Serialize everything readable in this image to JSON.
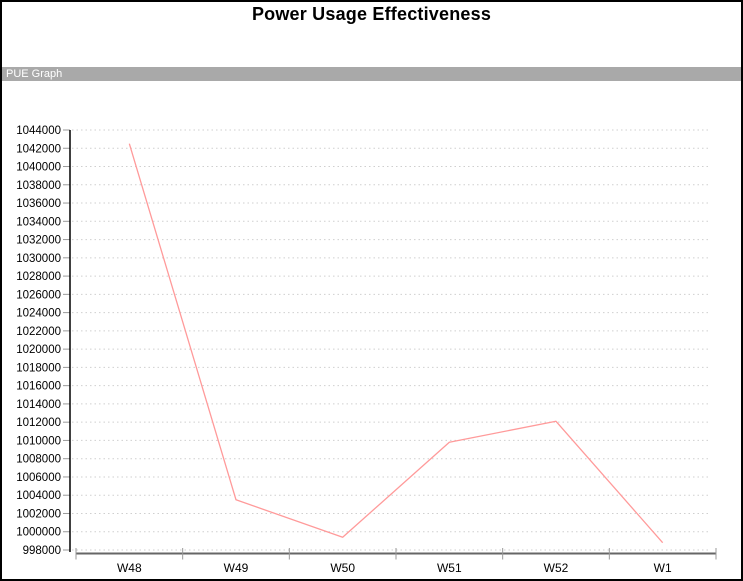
{
  "title": "Power Usage Effectiveness",
  "section_label": "PUE Graph",
  "colors": {
    "line": "#ff9a9a",
    "grid": "#cfcfcf",
    "y_axis": "#000000",
    "x_axis": "#666666",
    "tick": "#999999",
    "label_text": "#000000",
    "section_bar_bg": "#a9a9a9",
    "section_bar_text": "#ffffff",
    "title_text": "#000000"
  },
  "chart_data": {
    "type": "line",
    "title": "Power Usage Effectiveness",
    "subtitle": "PUE Graph",
    "categories": [
      "W48",
      "W49",
      "W50",
      "W51",
      "W52",
      "W1"
    ],
    "values": [
      1042500,
      1003500,
      999400,
      1009800,
      1012100,
      998800
    ],
    "xlabel": "",
    "ylabel": "",
    "ylim": [
      998000,
      1044000
    ],
    "ytick_step": 2000,
    "yticks": [
      998000,
      1000000,
      1002000,
      1004000,
      1006000,
      1008000,
      1010000,
      1012000,
      1014000,
      1016000,
      1018000,
      1020000,
      1022000,
      1024000,
      1026000,
      1028000,
      1030000,
      1032000,
      1034000,
      1036000,
      1038000,
      1040000,
      1042000,
      1044000
    ],
    "grid": "dotted-horizontal",
    "legend": false,
    "line_color": "#ff9a9a"
  }
}
